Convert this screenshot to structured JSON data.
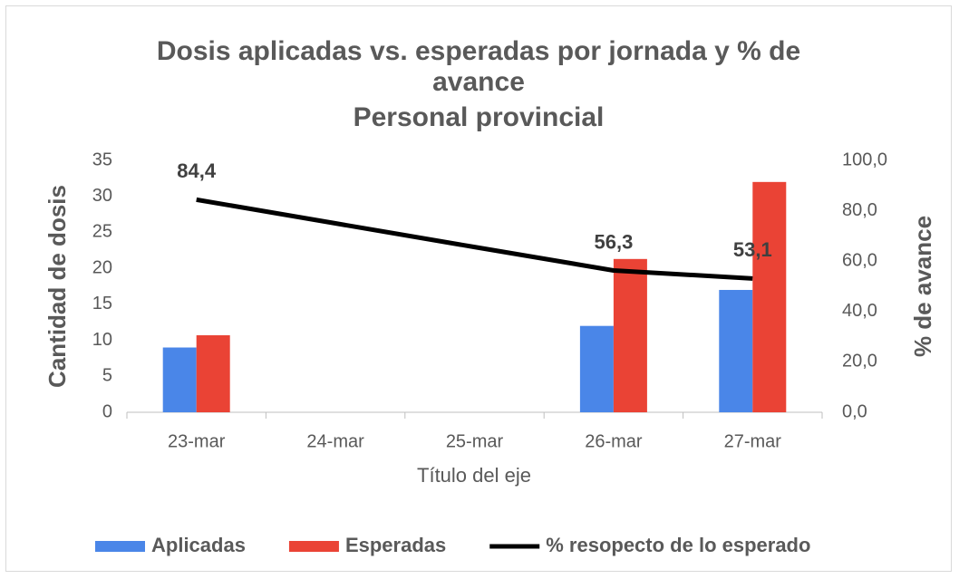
{
  "chart_data": {
    "type": "bar_line",
    "title": "Dosis aplicadas vs. esperadas por jornada y % de avance",
    "subtitle": "Personal provincial",
    "x_label": "Título del eje",
    "y_label": "Cantidad de dosis",
    "y2_label": "% de avance",
    "categories": [
      "23-mar",
      "24-mar",
      "25-mar",
      "26-mar",
      "27-mar"
    ],
    "series": [
      {
        "name": "Aplicadas",
        "type": "bar",
        "color": "#4a86e8",
        "values": [
          9,
          null,
          null,
          12,
          17
        ]
      },
      {
        "name": "Esperadas",
        "type": "bar",
        "color": "#ea4335",
        "values": [
          10.7,
          null,
          null,
          21.3,
          32
        ]
      },
      {
        "name": "% resopecto de lo esperado",
        "type": "line",
        "axis": "y2",
        "color": "#000000",
        "values": [
          84.4,
          75.0,
          65.6,
          56.3,
          53.1
        ],
        "value_labels": [
          "84,4",
          null,
          null,
          "56,3",
          "53,1"
        ]
      }
    ],
    "ylim": [
      0,
      35
    ],
    "yticks": [
      0,
      5,
      10,
      15,
      20,
      25,
      30,
      35
    ],
    "y2lim": [
      0,
      100
    ],
    "y2ticks": [
      {
        "value": 0,
        "label": "0,0"
      },
      {
        "value": 20,
        "label": "20,0"
      },
      {
        "value": 40,
        "label": "40,0"
      },
      {
        "value": 60,
        "label": "60,0"
      },
      {
        "value": 80,
        "label": "80,0"
      },
      {
        "value": 100,
        "label": "100,0"
      }
    ],
    "grid": false,
    "legend": "bottom"
  }
}
